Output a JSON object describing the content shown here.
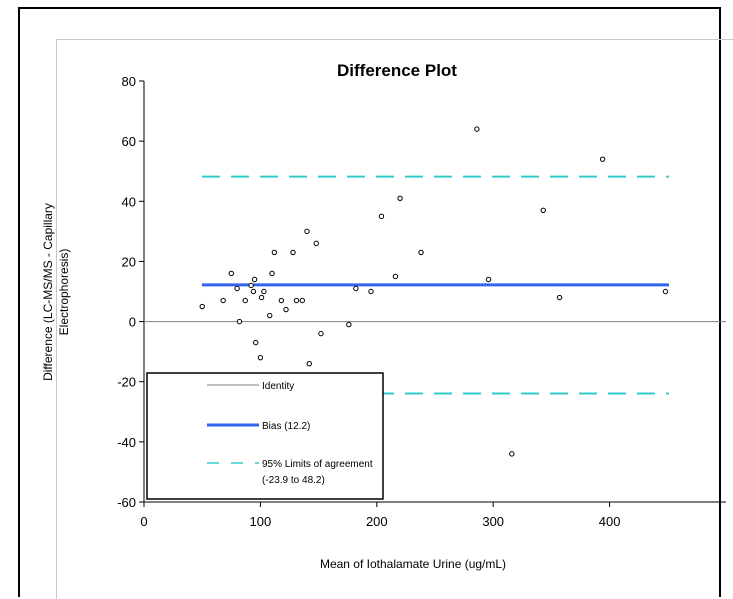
{
  "chart_data": {
    "type": "scatter",
    "title": "Difference Plot",
    "xlabel": "Mean of Iothalamate Urine (ug/mL)",
    "ylabel_lines": [
      "Difference (LC-MS/MS - Capillary",
      "Electrophoresis)"
    ],
    "xlim": [
      0,
      500
    ],
    "ylim": [
      -60,
      80
    ],
    "x_ticks": [
      0,
      100,
      200,
      300,
      400
    ],
    "y_ticks": [
      80,
      60,
      40,
      20,
      0,
      -20,
      -40,
      -60
    ],
    "grid": false,
    "points": [
      {
        "x": 50,
        "y": 5
      },
      {
        "x": 68,
        "y": 7
      },
      {
        "x": 75,
        "y": 16
      },
      {
        "x": 80,
        "y": 11
      },
      {
        "x": 82,
        "y": 0
      },
      {
        "x": 87,
        "y": 7
      },
      {
        "x": 92,
        "y": 12
      },
      {
        "x": 94,
        "y": 10
      },
      {
        "x": 95,
        "y": 14
      },
      {
        "x": 96,
        "y": -7
      },
      {
        "x": 100,
        "y": -12
      },
      {
        "x": 101,
        "y": 8
      },
      {
        "x": 103,
        "y": 10
      },
      {
        "x": 108,
        "y": 2
      },
      {
        "x": 110,
        "y": 16
      },
      {
        "x": 112,
        "y": 23
      },
      {
        "x": 118,
        "y": 7
      },
      {
        "x": 122,
        "y": 4
      },
      {
        "x": 128,
        "y": 23
      },
      {
        "x": 131,
        "y": 7
      },
      {
        "x": 136,
        "y": 7
      },
      {
        "x": 140,
        "y": 30
      },
      {
        "x": 142,
        "y": -14
      },
      {
        "x": 148,
        "y": 26
      },
      {
        "x": 152,
        "y": -4
      },
      {
        "x": 176,
        "y": -1
      },
      {
        "x": 182,
        "y": 11
      },
      {
        "x": 195,
        "y": 10
      },
      {
        "x": 204,
        "y": 35
      },
      {
        "x": 216,
        "y": 15
      },
      {
        "x": 220,
        "y": 41
      },
      {
        "x": 238,
        "y": 23
      },
      {
        "x": 286,
        "y": 64
      },
      {
        "x": 296,
        "y": 14
      },
      {
        "x": 316,
        "y": -44
      },
      {
        "x": 343,
        "y": 37
      },
      {
        "x": 357,
        "y": 8
      },
      {
        "x": 394,
        "y": 54
      },
      {
        "x": 448,
        "y": 10
      }
    ],
    "lines": [
      {
        "name": "Identity",
        "y": 0,
        "color": "#808080",
        "style": "solid"
      },
      {
        "name": "Bias (12.2)",
        "y": 12.2,
        "color": "#3366ee",
        "style": "solid"
      },
      {
        "name": "95% Limits of agreement",
        "y": 48.2,
        "color": "#33cccc",
        "style": "dashed"
      },
      {
        "name": "",
        "y": -23.9,
        "color": "#33cccc",
        "style": "dashed"
      }
    ],
    "legend": {
      "placement": "bottom-left",
      "entries": [
        {
          "label": "Identity",
          "color": "#808080",
          "style": "solid"
        },
        {
          "label": "Bias (12.2)",
          "color": "#3366ee",
          "style": "solid"
        },
        {
          "label": "95% Limits of agreement",
          "label2": "(-23.9 to 48.2)",
          "color": "#33cccc",
          "style": "dashed"
        }
      ]
    }
  }
}
